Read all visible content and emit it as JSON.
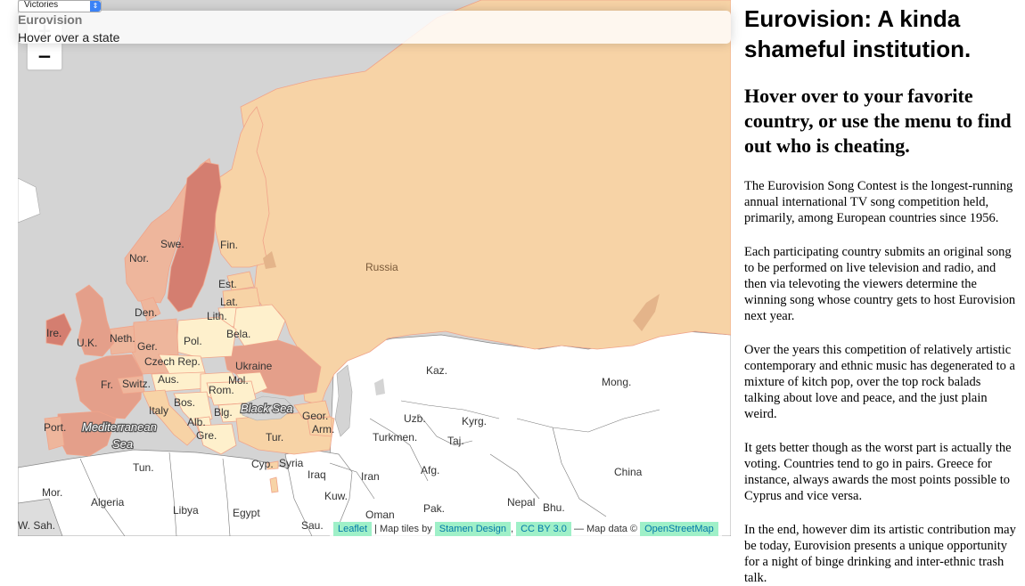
{
  "controls": {
    "metric_select": {
      "value": "Victories"
    }
  },
  "info_panel": {
    "title": "Eurovision",
    "hint": "Hover over a state"
  },
  "zoom": {
    "in_label": "+",
    "out_label": "−"
  },
  "map": {
    "labels": {
      "norway": "Nor.",
      "sweden": "Swe.",
      "finland": "Fin.",
      "russia": "Russia",
      "estonia": "Est.",
      "latvia": "Lat.",
      "lithuania": "Lith.",
      "belarus": "Bela.",
      "denmark": "Den.",
      "ireland": "Ire.",
      "uk": "U.K.",
      "netherlands": "Neth.",
      "germany": "Ger.",
      "poland": "Pol.",
      "czech": "Czech Rep.",
      "ukraine": "Ukraine",
      "france": "Fr.",
      "switzerland": "Switz.",
      "austria": "Aus.",
      "moldova": "Mol.",
      "romania": "Rom.",
      "italy": "Italy",
      "bosnia": "Bos.",
      "bulgaria": "Blg.",
      "albania": "Alb.",
      "greece": "Gre.",
      "georgia": "Geor.",
      "armenia": "Arm.",
      "portugal": "Port.",
      "turkey": "Tur.",
      "kazakhstan": "Kaz.",
      "mongolia": "Mong.",
      "uzbekistan": "Uzb.",
      "kyrgyzstan": "Kyrg.",
      "turkmenistan": "Turkmen.",
      "tajikistan": "Taj.",
      "tunisia": "Tun.",
      "cyprus": "Cyp.",
      "syria": "Syria",
      "iraq": "Iraq",
      "iran": "Iran",
      "afghanistan": "Afg.",
      "china": "China",
      "morocco": "Mor.",
      "algeria": "Algeria",
      "libya": "Libya",
      "egypt": "Egypt",
      "kuwait": "Kuw.",
      "pakistan": "Pak.",
      "nepal": "Nepal",
      "bhutan": "Bhu.",
      "oman": "Oman",
      "saudi": "Sau.",
      "w_sahara": "W. Sah."
    },
    "seas": {
      "black_sea": "Black Sea",
      "mediterranean_1": "Mediterranean",
      "mediterranean_2": "Sea"
    }
  },
  "attribution": {
    "leaflet": "Leaflet",
    "tiles_prefix": "| Map tiles by",
    "stamen": "Stamen Design",
    "sep": ",",
    "license": "CC BY 3.0",
    "data_prefix": "— Map data ©",
    "osm": "OpenStreetMap"
  },
  "article": {
    "title": "Eurovision: A kinda shameful institution.",
    "subtitle": "Hover over to your favorite country, or use the menu to find out who is cheating.",
    "paragraphs": [
      "The Eurovision Song Contest is the longest-running annual international TV song competition held, primarily, among European countries since 1956.",
      "Each participating country submits an original song to be performed on live television and radio, and then via televoting the viewers determine the winning song whose country gets to host Eurovision next year.",
      "Over the years this competition of relatively artistic contemporary and ethnic music has degenerated to a mixture of kitch pop, over the top rock balads talking about love and peace, and the just plain weird.",
      "It gets better though as the worst part is actually the voting. Countries tend to go in pairs. Greece for instance, always awards the most points possible to Cyprus and vice versa.",
      "In the end, however dim its artistic contribution may be today, Eurovision presents a unique opportunity for a night of binge drinking and inter-ethnic trash talk."
    ]
  },
  "colors": {
    "sea": "#d4d4d4",
    "non_member": "#ffffff",
    "level_0": "#fef0cc",
    "level_1": "#f7d3a6",
    "level_2": "#eeb69c",
    "level_3": "#e49f8a",
    "level_4": "#d47e70",
    "border": "#f0a48a"
  }
}
